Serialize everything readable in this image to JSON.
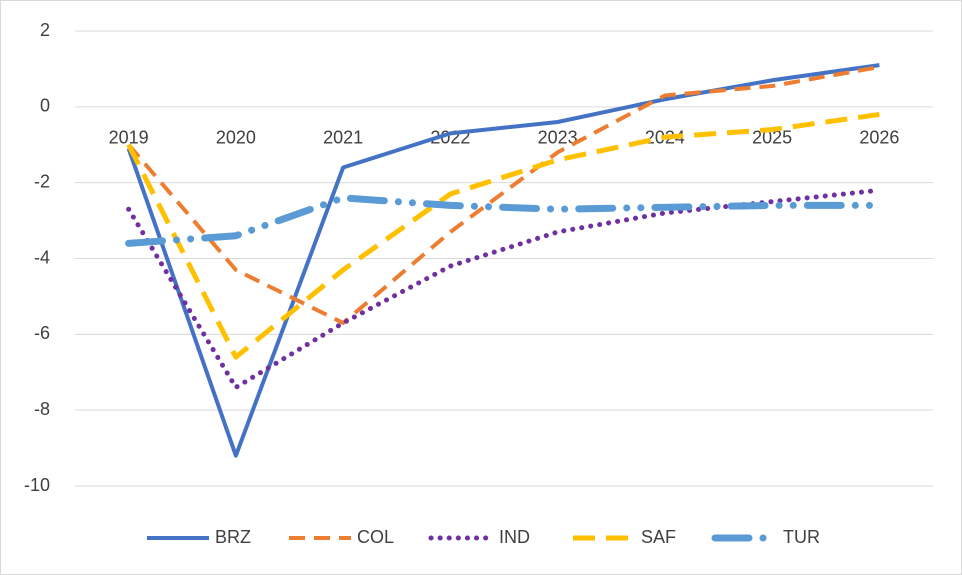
{
  "chart_data": {
    "type": "line",
    "categories": [
      "2019",
      "2020",
      "2021",
      "2022",
      "2023",
      "2024",
      "2025",
      "2026"
    ],
    "series": [
      {
        "name": "BRZ",
        "color": "#4472c4",
        "values": [
          -1.1,
          -9.2,
          -1.6,
          -0.7,
          -0.4,
          0.2,
          0.7,
          1.1
        ]
      },
      {
        "name": "COL",
        "color": "#ed7d31",
        "values": [
          -1.0,
          -4.3,
          -5.7,
          -3.3,
          -1.2,
          0.3,
          0.55,
          1.05
        ]
      },
      {
        "name": "IND",
        "color": "#7030a0",
        "values": [
          -2.7,
          -7.4,
          -5.7,
          -4.2,
          -3.3,
          -2.8,
          -2.5,
          -2.2
        ]
      },
      {
        "name": "SAF",
        "color": "#ffc000",
        "values": [
          -1.0,
          -6.6,
          -4.3,
          -2.3,
          -1.4,
          -0.8,
          -0.6,
          -0.2
        ]
      },
      {
        "name": "TUR",
        "color": "#5b9bd5",
        "values": [
          -3.6,
          -3.4,
          -2.4,
          -2.6,
          -2.7,
          -2.65,
          -2.6,
          -2.6
        ]
      }
    ],
    "ylim": [
      -10,
      2
    ],
    "yticks": [
      -10,
      -8,
      -6,
      -4,
      -2,
      0,
      2
    ],
    "grid": true,
    "legend": "bottom"
  }
}
